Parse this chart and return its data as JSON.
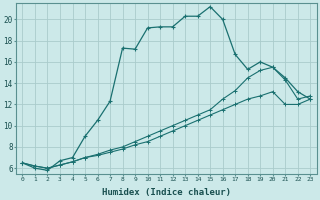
{
  "title": "",
  "xlabel": "Humidex (Indice chaleur)",
  "bg_color": "#cce9e9",
  "grid_color": "#aacccc",
  "line_color": "#1a7070",
  "xlim": [
    -0.5,
    23.5
  ],
  "ylim": [
    5.5,
    21.5
  ],
  "xticks": [
    0,
    1,
    2,
    3,
    4,
    5,
    6,
    7,
    8,
    9,
    10,
    11,
    12,
    13,
    14,
    15,
    16,
    17,
    18,
    19,
    20,
    21,
    22,
    23
  ],
  "yticks": [
    6,
    8,
    10,
    12,
    14,
    16,
    18,
    20
  ],
  "line1_x": [
    0,
    1,
    2,
    3,
    4,
    5,
    6,
    7,
    8,
    9,
    10,
    11,
    12,
    13,
    14,
    15,
    16,
    17,
    18,
    19,
    20,
    21,
    22,
    23
  ],
  "line1_y": [
    6.5,
    6.0,
    5.8,
    6.7,
    7.0,
    9.0,
    10.5,
    12.3,
    17.3,
    17.2,
    19.2,
    19.3,
    19.3,
    20.3,
    20.3,
    21.2,
    20.0,
    16.7,
    15.3,
    16.0,
    15.5,
    14.5,
    13.2,
    12.5
  ],
  "line2_x": [
    0,
    1,
    2,
    3,
    4,
    5,
    6,
    7,
    8,
    9,
    10,
    11,
    12,
    13,
    14,
    15,
    16,
    17,
    18,
    19,
    20,
    21,
    22,
    23
  ],
  "line2_y": [
    6.5,
    6.2,
    6.0,
    6.3,
    6.6,
    7.0,
    7.3,
    7.7,
    8.0,
    8.5,
    9.0,
    9.5,
    10.0,
    10.5,
    11.0,
    11.5,
    12.5,
    13.3,
    14.5,
    15.2,
    15.5,
    14.3,
    12.5,
    12.8
  ],
  "line3_x": [
    0,
    1,
    2,
    3,
    4,
    5,
    6,
    7,
    8,
    9,
    10,
    11,
    12,
    13,
    14,
    15,
    16,
    17,
    18,
    19,
    20,
    21,
    22,
    23
  ],
  "line3_y": [
    6.5,
    6.2,
    6.0,
    6.3,
    6.6,
    7.0,
    7.2,
    7.5,
    7.8,
    8.2,
    8.5,
    9.0,
    9.5,
    10.0,
    10.5,
    11.0,
    11.5,
    12.0,
    12.5,
    12.8,
    13.2,
    12.0,
    12.0,
    12.5
  ]
}
